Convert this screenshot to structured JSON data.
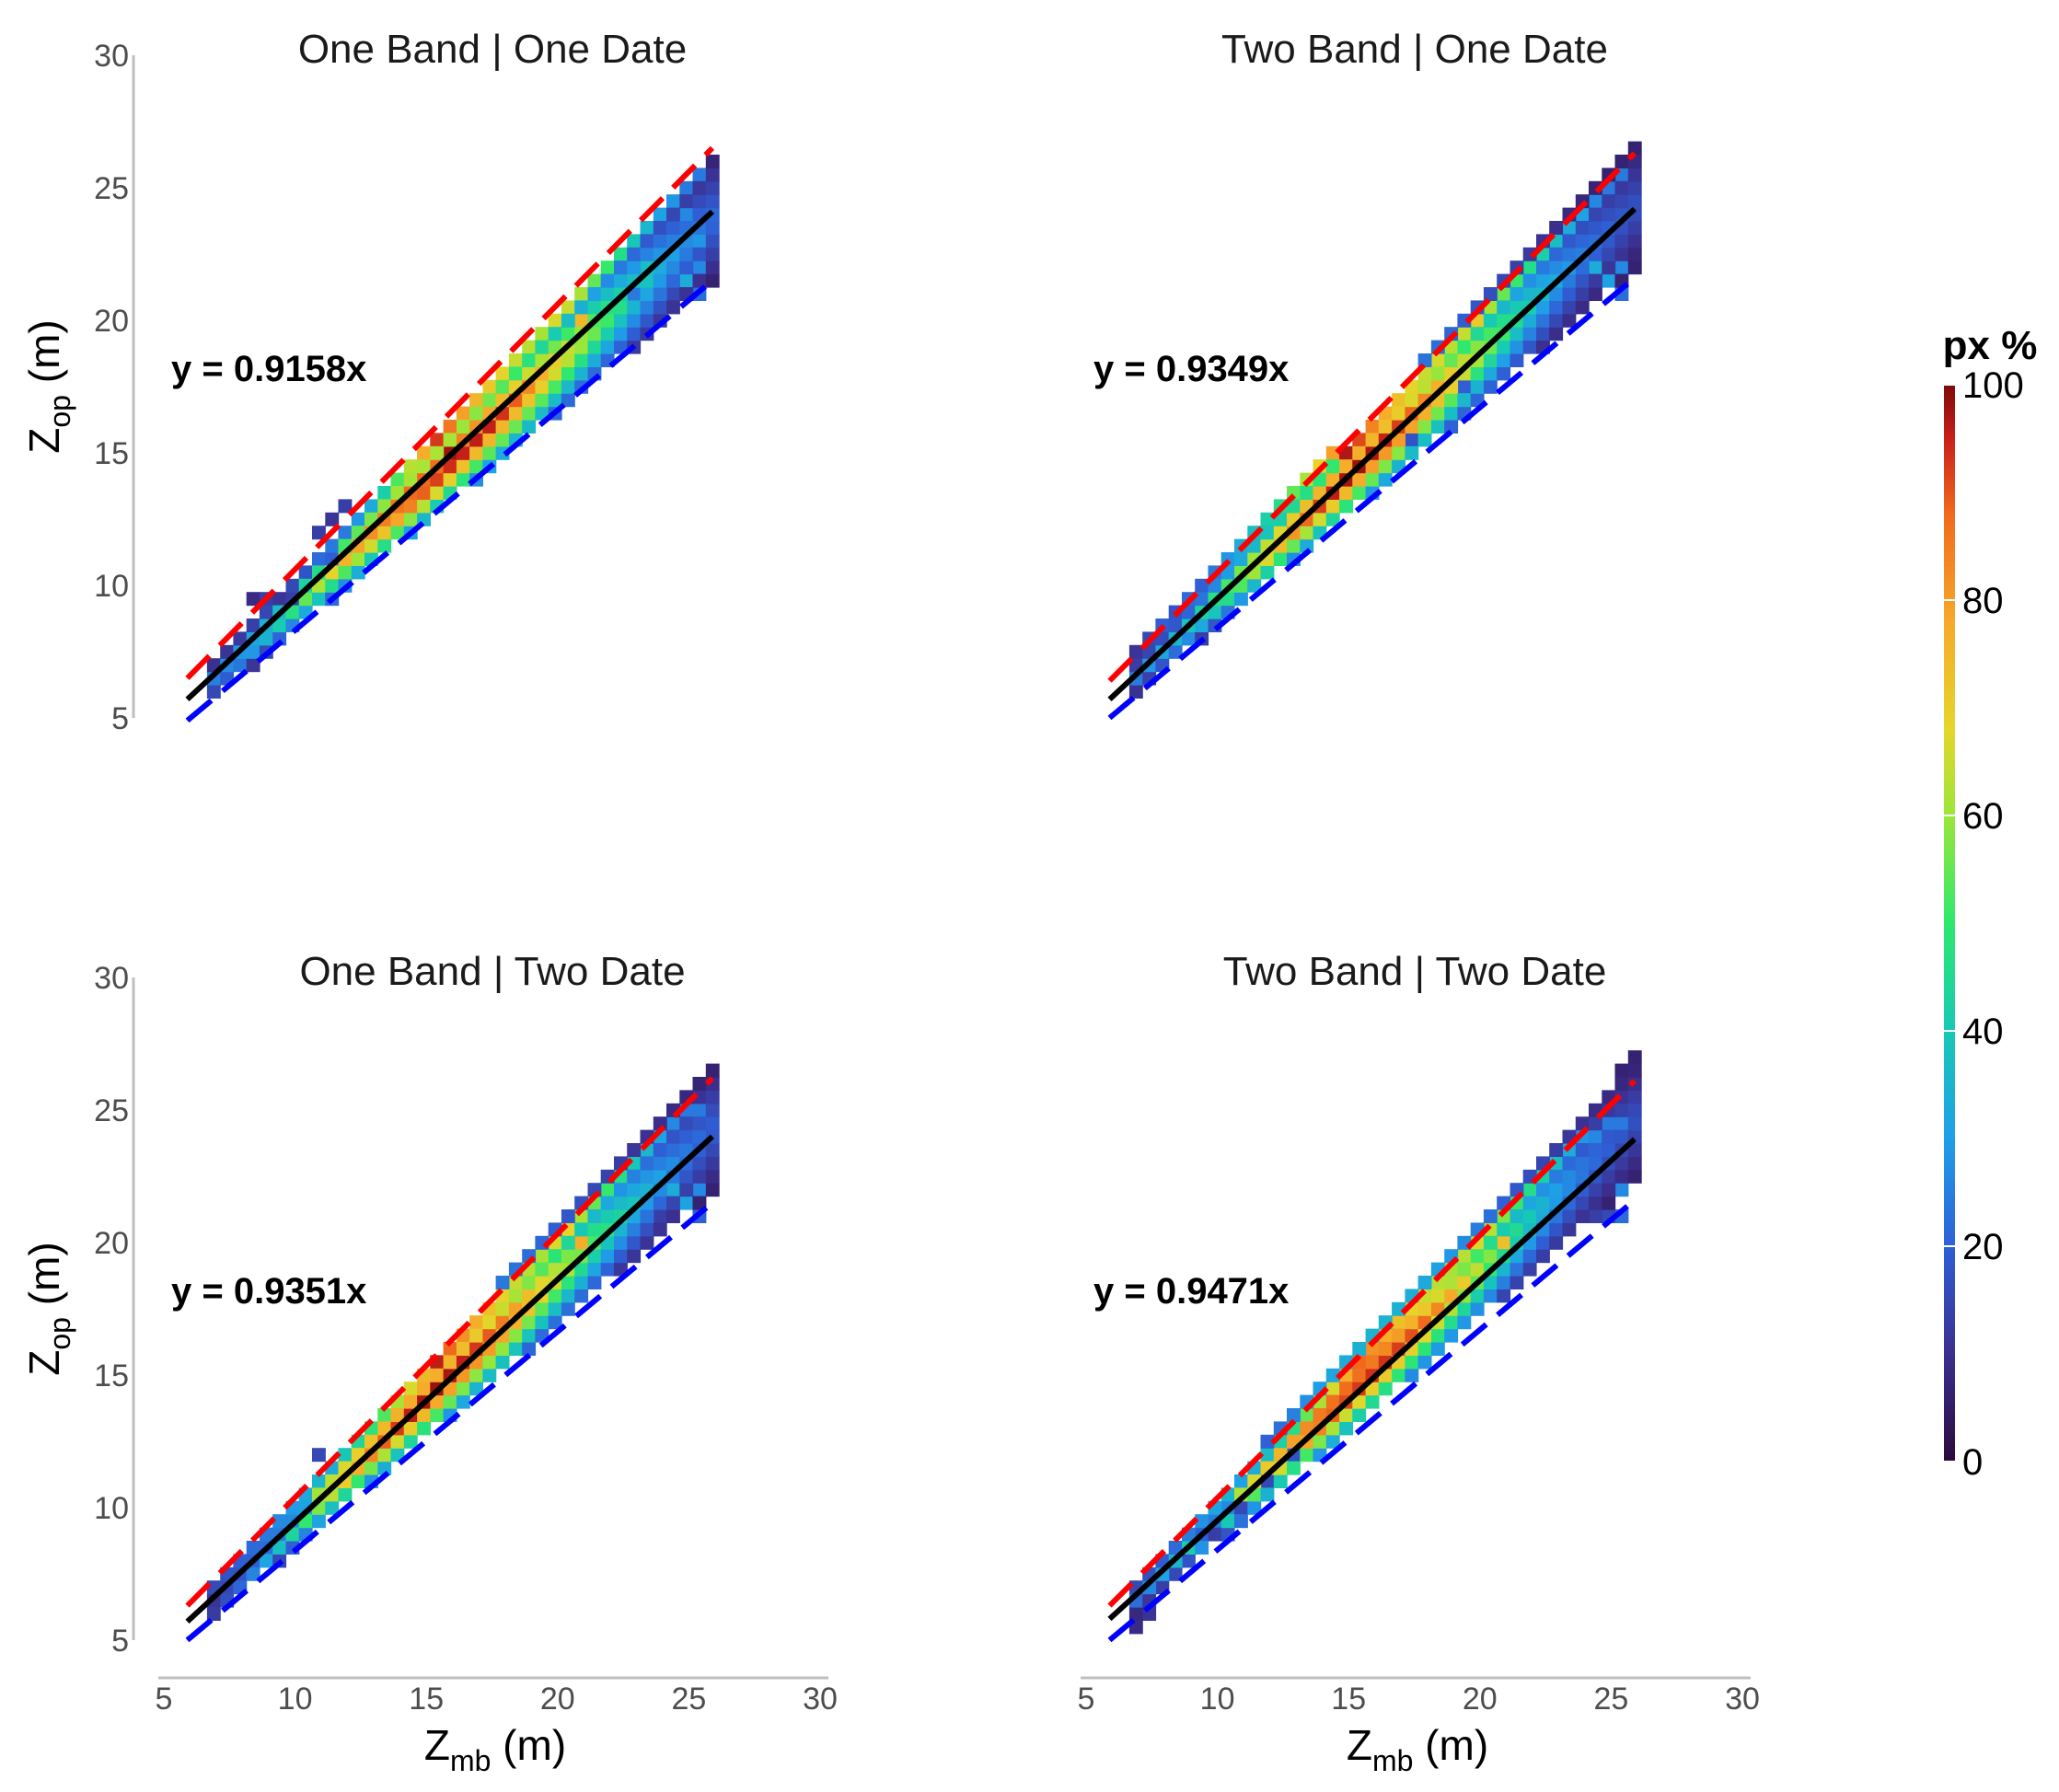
{
  "colors": {
    "fit": "#000000",
    "upper": "#ff0000",
    "lower": "#0000ff",
    "axis": "#bfbfbf",
    "palette": [
      "#2b0a3d",
      "#3b2f8f",
      "#2f5fd6",
      "#1f9fe8",
      "#17c9b5",
      "#2ee86e",
      "#9be63a",
      "#e5d62a",
      "#f6a92a",
      "#f06a1d",
      "#c8201a",
      "#7f0a0a"
    ]
  },
  "icons": [],
  "x_axis_label": {
    "main": "Z",
    "sub": "mb",
    "unit": " (m)"
  },
  "y_axis_label": {
    "main": "Z",
    "sub": "op",
    "unit": " (m)"
  },
  "colorbar": {
    "title": "px %",
    "ticks": [
      "0",
      "20",
      "40",
      "60",
      "80",
      "100"
    ],
    "range": [
      0,
      100
    ]
  },
  "chart_data": [
    {
      "type": "heatmap",
      "title": "One Band | One Date",
      "equation": "y = 0.9158x",
      "slope": 0.9158,
      "xlim": [
        5,
        30
      ],
      "ylim": [
        5,
        30
      ],
      "xticks": [
        "5",
        "10",
        "15",
        "20",
        "25",
        "30"
      ],
      "yticks": [
        "5",
        "10",
        "15",
        "20",
        "25",
        "30"
      ],
      "x_tick_labels_shown": false,
      "grid": false,
      "x_range": [
        6,
        26
      ],
      "bin_width": 0.5,
      "peak_x": 16,
      "spread": 1.1,
      "lines": {
        "fit": [
          [
            6,
            5.7
          ],
          [
            26,
            24.1
          ]
        ],
        "upper": [
          [
            6,
            6.5
          ],
          [
            26,
            26.5
          ]
        ],
        "lower": [
          [
            6,
            4.9
          ],
          [
            26,
            21.5
          ]
        ]
      },
      "bins": [
        [
          8.5,
          9.5,
          8
        ],
        [
          9,
          9.5,
          12
        ],
        [
          9.5,
          9.5,
          10
        ],
        [
          10,
          9.5,
          12
        ],
        [
          10,
          10,
          14
        ],
        [
          10.5,
          10.5,
          16
        ],
        [
          11,
          11,
          20
        ],
        [
          11,
          12,
          12
        ],
        [
          11.5,
          12.5,
          10
        ],
        [
          11.5,
          11,
          18
        ],
        [
          12,
          12,
          22
        ],
        [
          12,
          13,
          12
        ],
        [
          12.5,
          12.5,
          26
        ],
        [
          13,
          13,
          30
        ],
        [
          13.5,
          13.5,
          38
        ],
        [
          14,
          14,
          48
        ],
        [
          14.5,
          14.5,
          58
        ],
        [
          15,
          15,
          72
        ],
        [
          15.5,
          15.5,
          88
        ],
        [
          16,
          15,
          96
        ],
        [
          16,
          16,
          80
        ],
        [
          16.5,
          16.5,
          74
        ],
        [
          17,
          17,
          70
        ],
        [
          17.5,
          17.5,
          66
        ],
        [
          18,
          18,
          64
        ],
        [
          18.5,
          18.5,
          60
        ],
        [
          19,
          19,
          58
        ],
        [
          19.5,
          19.5,
          56
        ],
        [
          20,
          20,
          62
        ],
        [
          20.5,
          20.5,
          60
        ],
        [
          21,
          20,
          70
        ],
        [
          21,
          21,
          56
        ],
        [
          21.5,
          21.5,
          50
        ],
        [
          22,
          22,
          46
        ],
        [
          22.5,
          22.5,
          42
        ],
        [
          23,
          23,
          36
        ],
        [
          23.5,
          23.5,
          32
        ],
        [
          24,
          24,
          28
        ],
        [
          24.5,
          24.5,
          26
        ],
        [
          25,
          24,
          24
        ],
        [
          25,
          25,
          22
        ],
        [
          25.5,
          25.5,
          22
        ],
        [
          25.5,
          21,
          20
        ],
        [
          25.5,
          22,
          24
        ],
        [
          25.5,
          23,
          26
        ],
        [
          25,
          21.5,
          30
        ],
        [
          24.5,
          21,
          14
        ],
        [
          24,
          22,
          30
        ],
        [
          23.5,
          22,
          34
        ],
        [
          23,
          21,
          22
        ]
      ]
    },
    {
      "type": "heatmap",
      "title": "Two Band | One Date",
      "equation": "y = 0.9349x",
      "slope": 0.9349,
      "xlim": [
        5,
        30
      ],
      "ylim": [
        5,
        30
      ],
      "xticks": [
        "5",
        "10",
        "15",
        "20",
        "25",
        "30"
      ],
      "yticks": [
        "5",
        "10",
        "15",
        "20",
        "25",
        "30"
      ],
      "x_tick_labels_shown": false,
      "y_tick_labels_shown": false,
      "grid": false,
      "x_range": [
        6,
        26
      ],
      "bin_width": 0.5,
      "peak_x": 15.5,
      "spread": 1.0,
      "lines": {
        "fit": [
          [
            6,
            5.7
          ],
          [
            26,
            24.2
          ]
        ],
        "upper": [
          [
            6,
            6.4
          ],
          [
            26,
            26.3
          ]
        ],
        "lower": [
          [
            6,
            5.0
          ],
          [
            26,
            21.6
          ]
        ]
      },
      "bins": [
        [
          7,
          7.5,
          10
        ],
        [
          7.5,
          8,
          14
        ],
        [
          8,
          8.5,
          18
        ],
        [
          8.5,
          9,
          16
        ],
        [
          9,
          9.5,
          20
        ],
        [
          9.5,
          10,
          18
        ],
        [
          10,
          10.5,
          22
        ],
        [
          10.5,
          11,
          26
        ],
        [
          11,
          11.5,
          30
        ],
        [
          11.5,
          12,
          34
        ],
        [
          12,
          12.5,
          38
        ],
        [
          12.5,
          13,
          42
        ],
        [
          13,
          13.5,
          50
        ],
        [
          13.5,
          14,
          56
        ],
        [
          14,
          14.5,
          64
        ],
        [
          14.5,
          15,
          74
        ],
        [
          15,
          15,
          94
        ],
        [
          15.5,
          15.5,
          86
        ],
        [
          16,
          16,
          78
        ],
        [
          16.5,
          16.5,
          72
        ],
        [
          17,
          17,
          68
        ],
        [
          17.5,
          17.5,
          64
        ],
        [
          18,
          18,
          60
        ],
        [
          18.5,
          18.5,
          62
        ],
        [
          19,
          19,
          58
        ],
        [
          19.5,
          19.5,
          60
        ],
        [
          20,
          20,
          66
        ],
        [
          20.5,
          20.5,
          56
        ],
        [
          21,
          21,
          50
        ],
        [
          21.5,
          21.5,
          46
        ],
        [
          22,
          22,
          42
        ],
        [
          22.5,
          22.5,
          38
        ],
        [
          23,
          23,
          34
        ],
        [
          23.5,
          23.5,
          30
        ],
        [
          24,
          24,
          28
        ],
        [
          24.5,
          24.5,
          24
        ],
        [
          25,
          25,
          22
        ],
        [
          25.5,
          25.5,
          22
        ],
        [
          25.5,
          21,
          20
        ],
        [
          25.5,
          22,
          24
        ],
        [
          25,
          21.5,
          28
        ],
        [
          24.5,
          22,
          30
        ],
        [
          19.5,
          17.5,
          18
        ],
        [
          17.5,
          15.5,
          16
        ]
      ]
    },
    {
      "type": "heatmap",
      "title": "One Band | Two Date",
      "equation": "y = 0.9351x",
      "slope": 0.9351,
      "xlim": [
        5,
        30
      ],
      "ylim": [
        5,
        30
      ],
      "xticks": [
        "5",
        "10",
        "15",
        "20",
        "25",
        "30"
      ],
      "yticks": [
        "5",
        "10",
        "15",
        "20",
        "25",
        "30"
      ],
      "grid": false,
      "x_range": [
        6,
        26
      ],
      "bin_width": 0.5,
      "peak_x": 15.5,
      "spread": 1.1,
      "lines": {
        "fit": [
          [
            6,
            5.7
          ],
          [
            26,
            24.0
          ]
        ],
        "upper": [
          [
            6,
            6.3
          ],
          [
            26,
            26.2
          ]
        ],
        "lower": [
          [
            6,
            5.0
          ],
          [
            26,
            21.5
          ]
        ]
      },
      "bins": [
        [
          7,
          6.5,
          10
        ],
        [
          7.5,
          7,
          14
        ],
        [
          8,
          7.5,
          16
        ],
        [
          8.5,
          8,
          18
        ],
        [
          9,
          8.5,
          20
        ],
        [
          9.5,
          9,
          22
        ],
        [
          10,
          9.5,
          24
        ],
        [
          10.5,
          10,
          28
        ],
        [
          11,
          11,
          32
        ],
        [
          11,
          12,
          14
        ],
        [
          11.5,
          11.5,
          30
        ],
        [
          12,
          12,
          36
        ],
        [
          12.5,
          12.5,
          40
        ],
        [
          13,
          13,
          44
        ],
        [
          13.5,
          13.5,
          48
        ],
        [
          14,
          14,
          56
        ],
        [
          14.5,
          14.5,
          62
        ],
        [
          15,
          15,
          70
        ],
        [
          15.5,
          15.5,
          92
        ],
        [
          16,
          16,
          82
        ],
        [
          16.5,
          16.5,
          76
        ],
        [
          17,
          17,
          72
        ],
        [
          17.5,
          17.5,
          68
        ],
        [
          18,
          18,
          64
        ],
        [
          18.5,
          18.5,
          60
        ],
        [
          19,
          19,
          58
        ],
        [
          19.5,
          19.5,
          56
        ],
        [
          20,
          20,
          62
        ],
        [
          20.5,
          20.5,
          64
        ],
        [
          21,
          20,
          72
        ],
        [
          21,
          21,
          56
        ],
        [
          21.5,
          21.5,
          50
        ],
        [
          22,
          22,
          46
        ],
        [
          22.5,
          22.5,
          42
        ],
        [
          23,
          23,
          36
        ],
        [
          23.5,
          23.5,
          32
        ],
        [
          24,
          24,
          28
        ],
        [
          24.5,
          24.5,
          24
        ],
        [
          25,
          25,
          22
        ],
        [
          25.5,
          25,
          22
        ],
        [
          25.5,
          21,
          18
        ],
        [
          25.5,
          22,
          24
        ],
        [
          25,
          21.5,
          28
        ],
        [
          24.5,
          22,
          30
        ],
        [
          24,
          21,
          12
        ]
      ]
    },
    {
      "type": "heatmap",
      "title": "Two Band | Two Date",
      "equation": "y = 0.9471x",
      "slope": 0.9471,
      "xlim": [
        5,
        30
      ],
      "ylim": [
        5,
        30
      ],
      "xticks": [
        "5",
        "10",
        "15",
        "20",
        "25",
        "30"
      ],
      "yticks": [
        "5",
        "10",
        "15",
        "20",
        "25",
        "30"
      ],
      "y_tick_labels_shown": false,
      "grid": false,
      "x_range": [
        6,
        26
      ],
      "bin_width": 0.5,
      "peak_x": 15.5,
      "spread": 1.0,
      "lines": {
        "fit": [
          [
            6,
            5.8
          ],
          [
            26,
            23.9
          ]
        ],
        "upper": [
          [
            6,
            6.3
          ],
          [
            26,
            26.1
          ]
        ],
        "lower": [
          [
            6,
            5.0
          ],
          [
            26,
            21.6
          ]
        ]
      },
      "bins": [
        [
          7,
          5.5,
          8
        ],
        [
          7.5,
          6,
          10
        ],
        [
          8,
          7,
          12
        ],
        [
          8.5,
          7.5,
          14
        ],
        [
          9,
          8,
          16
        ],
        [
          9.5,
          9,
          18
        ],
        [
          10,
          9.5,
          22
        ],
        [
          10.5,
          10,
          24
        ],
        [
          11,
          11,
          28
        ],
        [
          11.5,
          11.5,
          30
        ],
        [
          12,
          12,
          34
        ],
        [
          12.5,
          12.5,
          38
        ],
        [
          13,
          13,
          42
        ],
        [
          13.5,
          13.5,
          50
        ],
        [
          14,
          14,
          56
        ],
        [
          14.5,
          14.5,
          62
        ],
        [
          15,
          15,
          72
        ],
        [
          15.5,
          15.5,
          82
        ],
        [
          16,
          16,
          76
        ],
        [
          16.5,
          16.5,
          72
        ],
        [
          17,
          17,
          68
        ],
        [
          17.5,
          17.5,
          64
        ],
        [
          18,
          18,
          60
        ],
        [
          18.5,
          18.5,
          58
        ],
        [
          19,
          19,
          56
        ],
        [
          19.5,
          19.5,
          58
        ],
        [
          20,
          20,
          62
        ],
        [
          20.5,
          20.5,
          58
        ],
        [
          21,
          20,
          68
        ],
        [
          21,
          21,
          52
        ],
        [
          21.5,
          21.5,
          46
        ],
        [
          22,
          22,
          42
        ],
        [
          22.5,
          22.5,
          38
        ],
        [
          23,
          23,
          34
        ],
        [
          23.5,
          23.5,
          30
        ],
        [
          24,
          24,
          26
        ],
        [
          24.5,
          24,
          24
        ],
        [
          25,
          24.5,
          22
        ],
        [
          25.5,
          24.5,
          22
        ],
        [
          25.5,
          21,
          20
        ],
        [
          25.5,
          22,
          24
        ],
        [
          25,
          21,
          14
        ],
        [
          24.5,
          21,
          12
        ],
        [
          13,
          12,
          16
        ],
        [
          12,
          11,
          14
        ],
        [
          11,
          10,
          14
        ],
        [
          10,
          9,
          12
        ]
      ]
    }
  ]
}
